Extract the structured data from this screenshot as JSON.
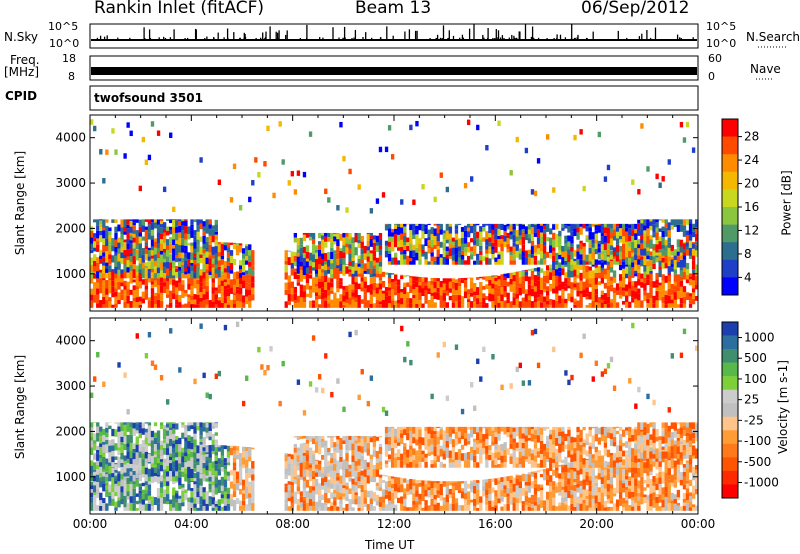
{
  "header": {
    "title": "Rankin Inlet (fitACF)",
    "beam": "Beam 13",
    "date": "06/Sep/2012"
  },
  "panels": {
    "nsky_label": "N.Sky",
    "nsky_ticks": [
      "10^5",
      "10^0"
    ],
    "nsearch_label": "N.Search",
    "nsearch_ticks": [
      "10^5",
      "10^0"
    ],
    "freq_label": "Freq.",
    "freq_unit": "[MHz]",
    "freq_ticks": [
      "18",
      "8"
    ],
    "nave_label": "Nave",
    "nave_ticks": [
      "60",
      "0"
    ],
    "cpid_label": "CPID",
    "cpid_value": "twofsound 3501"
  },
  "chart_data": [
    {
      "type": "heatmap",
      "parameter": "power",
      "ylabel": "Slant Range [km]",
      "yticks": [
        "1000",
        "2000",
        "3000",
        "4000"
      ],
      "ylim": [
        180,
        4500
      ],
      "xlim": [
        "00:00",
        "24:00"
      ],
      "colorbar_label": "Power [dB]",
      "colorbar_ticks": [
        "28",
        "24",
        "20",
        "16",
        "12",
        "8",
        "4"
      ],
      "colors": [
        "#ff0000",
        "#ff4a00",
        "#ff8c00",
        "#f4b800",
        "#c8d820",
        "#8cc63f",
        "#4f9a66",
        "#2d6e8e",
        "#1f3fc8",
        "#0000ff"
      ]
    },
    {
      "type": "heatmap",
      "parameter": "velocity",
      "ylabel": "Slant Range [km]",
      "yticks": [
        "1000",
        "2000",
        "3000",
        "4000"
      ],
      "ylim": [
        180,
        4500
      ],
      "xlim": [
        "00:00",
        "24:00"
      ],
      "xlabel": "Time UT",
      "xticks": [
        "00:00",
        "04:00",
        "08:00",
        "12:00",
        "16:00",
        "20:00",
        "00:00"
      ],
      "colorbar_label": "Velocity [m s-1]",
      "colorbar_ticks": [
        "1000",
        "500",
        "100",
        "25",
        "-25",
        "-100",
        "-500",
        "-1000"
      ],
      "colors": [
        "#1c3fae",
        "#2c6e9f",
        "#3f8e6e",
        "#58b849",
        "#7ed03a",
        "#cccccc",
        "#c0c0c0",
        "#ffc48a",
        "#ff9c36",
        "#ff7a1a",
        "#ff5400",
        "#ff2a00",
        "#ff0000"
      ]
    }
  ]
}
